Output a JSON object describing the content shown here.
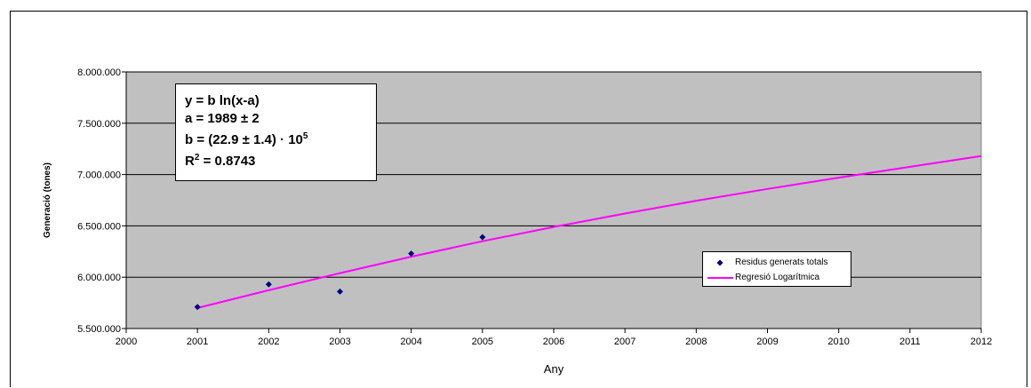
{
  "chart_data": {
    "type": "scatter",
    "title": "",
    "xlabel": "Any",
    "ylabel": "Generació (tones)",
    "xlim": [
      2000,
      2012
    ],
    "ylim": [
      5500000,
      8000000
    ],
    "x_ticks": [
      "2000",
      "2001",
      "2002",
      "2003",
      "2004",
      "2005",
      "2006",
      "2007",
      "2008",
      "2009",
      "2010",
      "2011",
      "2012"
    ],
    "y_ticks": [
      "5.500.000",
      "6.000.000",
      "6.500.000",
      "7.000.000",
      "7.500.000",
      "8.000.000"
    ],
    "y_tick_values": [
      5500000,
      6000000,
      6500000,
      7000000,
      7500000,
      8000000
    ],
    "grid": "horizontal",
    "legend_position": "right",
    "series": [
      {
        "name": "Residus generats totals",
        "type": "scatter",
        "color": "#000080",
        "marker": "diamond",
        "x": [
          2001,
          2002,
          2003,
          2004,
          2005
        ],
        "y": [
          5710000,
          5930000,
          5860000,
          6230000,
          6390000
        ]
      },
      {
        "name": "Regresió Logarítmica",
        "type": "line",
        "color": "#ff00ff",
        "x": [
          2001,
          2002,
          2003,
          2004,
          2005,
          2006,
          2007,
          2008,
          2009,
          2010,
          2011,
          2012
        ],
        "y": [
          5700000,
          5873000,
          6040000,
          6200000,
          6350000,
          6490000,
          6620000,
          6745000,
          6860000,
          6970000,
          7075000,
          7180000
        ]
      }
    ],
    "annotation": {
      "lines": [
        "y = b ln(x-a)",
        "a = 1989 ± 2",
        "b = (22.9 ± 1.4) · 10",
        "R",
        " = 0.8743"
      ],
      "superscripts": [
        "5",
        "2"
      ]
    },
    "colors": {
      "plot_background": "#c0c0c0",
      "gridline": "#000000"
    }
  }
}
